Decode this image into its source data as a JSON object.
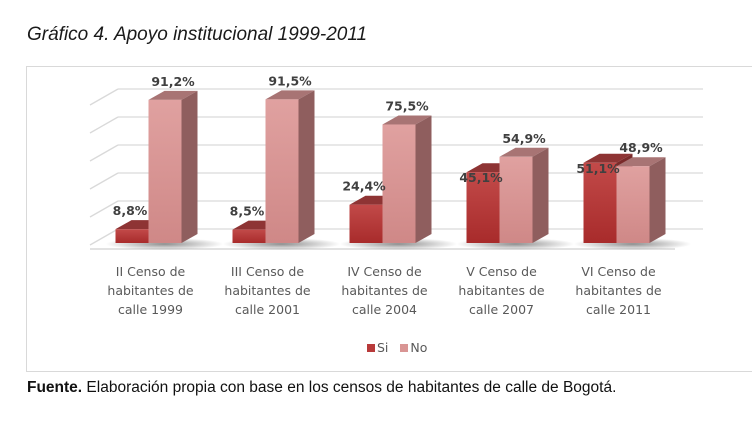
{
  "title": "Gráfico 4. Apoyo institucional 1999-2011",
  "source": {
    "label": "Fuente.",
    "text": " Elaboración propia con base en los censos de habitantes de calle de Bogotá."
  },
  "colors": {
    "si": "#b83a3a",
    "no": "#d99594"
  },
  "chart_data": {
    "type": "bar",
    "style": "3d-clustered-column",
    "title": "Gráfico 4. Apoyo institucional 1999-2011",
    "categories": [
      [
        "II Censo de",
        "habitantes de",
        "calle 1999"
      ],
      [
        "III Censo de",
        "habitantes de",
        "calle 2001"
      ],
      [
        "IV Censo de",
        "habitantes de",
        "calle 2004"
      ],
      [
        "V Censo de",
        "habitantes de",
        "calle 2007"
      ],
      [
        "VI Censo de",
        "habitantes de",
        "calle 2011"
      ]
    ],
    "series": [
      {
        "name": "Si",
        "values": [
          8.8,
          8.5,
          24.4,
          45.1,
          51.1
        ],
        "labels": [
          "8,8%",
          "8,5%",
          "24,4%",
          "45,1%",
          "51,1%"
        ]
      },
      {
        "name": "No",
        "values": [
          91.2,
          91.5,
          75.5,
          54.9,
          48.9
        ],
        "labels": [
          "91,2%",
          "91,5%",
          "75,5%",
          "54,9%",
          "48,9%"
        ]
      }
    ],
    "ylim": [
      0,
      100
    ],
    "ygrid_step": 20,
    "grid": true,
    "y_axis_labels_shown": false,
    "legend": {
      "position": "bottom",
      "entries": [
        "Si",
        "No"
      ]
    },
    "xlabel": "",
    "ylabel": ""
  }
}
